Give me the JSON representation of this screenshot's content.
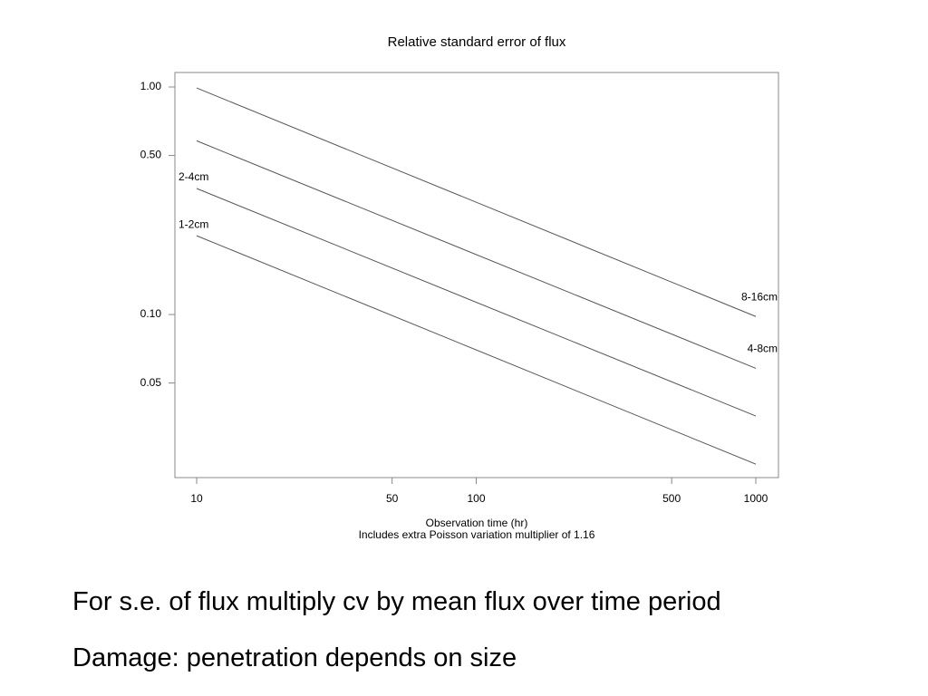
{
  "chart_data": {
    "type": "line",
    "title": "Relative standard error of flux",
    "x_label": "Observation time (hr)",
    "subtitle": "Includes extra Poisson variation multiplier of 1.16",
    "x": [
      10,
      1000
    ],
    "series": [
      {
        "name": "8-16cm",
        "color": "#555555",
        "values": [
          0.99,
          0.098
        ]
      },
      {
        "name": "4-8cm",
        "color": "#555555",
        "values": [
          0.58,
          0.058
        ]
      },
      {
        "name": "2-4cm",
        "color": "#555555",
        "values": [
          0.358,
          0.0358
        ]
      },
      {
        "name": "1-2cm",
        "color": "#555555",
        "values": [
          0.222,
          0.022
        ]
      }
    ],
    "xlim": [
      8.36,
      1205
    ],
    "ylim": [
      0.0192,
      1.158
    ],
    "xscale": "log",
    "yscale": "log",
    "xticks": [
      10,
      50,
      100,
      500,
      1000
    ],
    "yticks": [
      {
        "value": 1,
        "label": "1.00"
      },
      {
        "value": 0.5,
        "label": "0.50"
      },
      {
        "value": 0.1,
        "label": "0.10"
      },
      {
        "value": 0.05,
        "label": "0.05"
      }
    ],
    "grid": false
  },
  "notes": [
    "For s.e. of flux multiply cv by mean flux over time period",
    "Damage: penetration depends on size"
  ]
}
